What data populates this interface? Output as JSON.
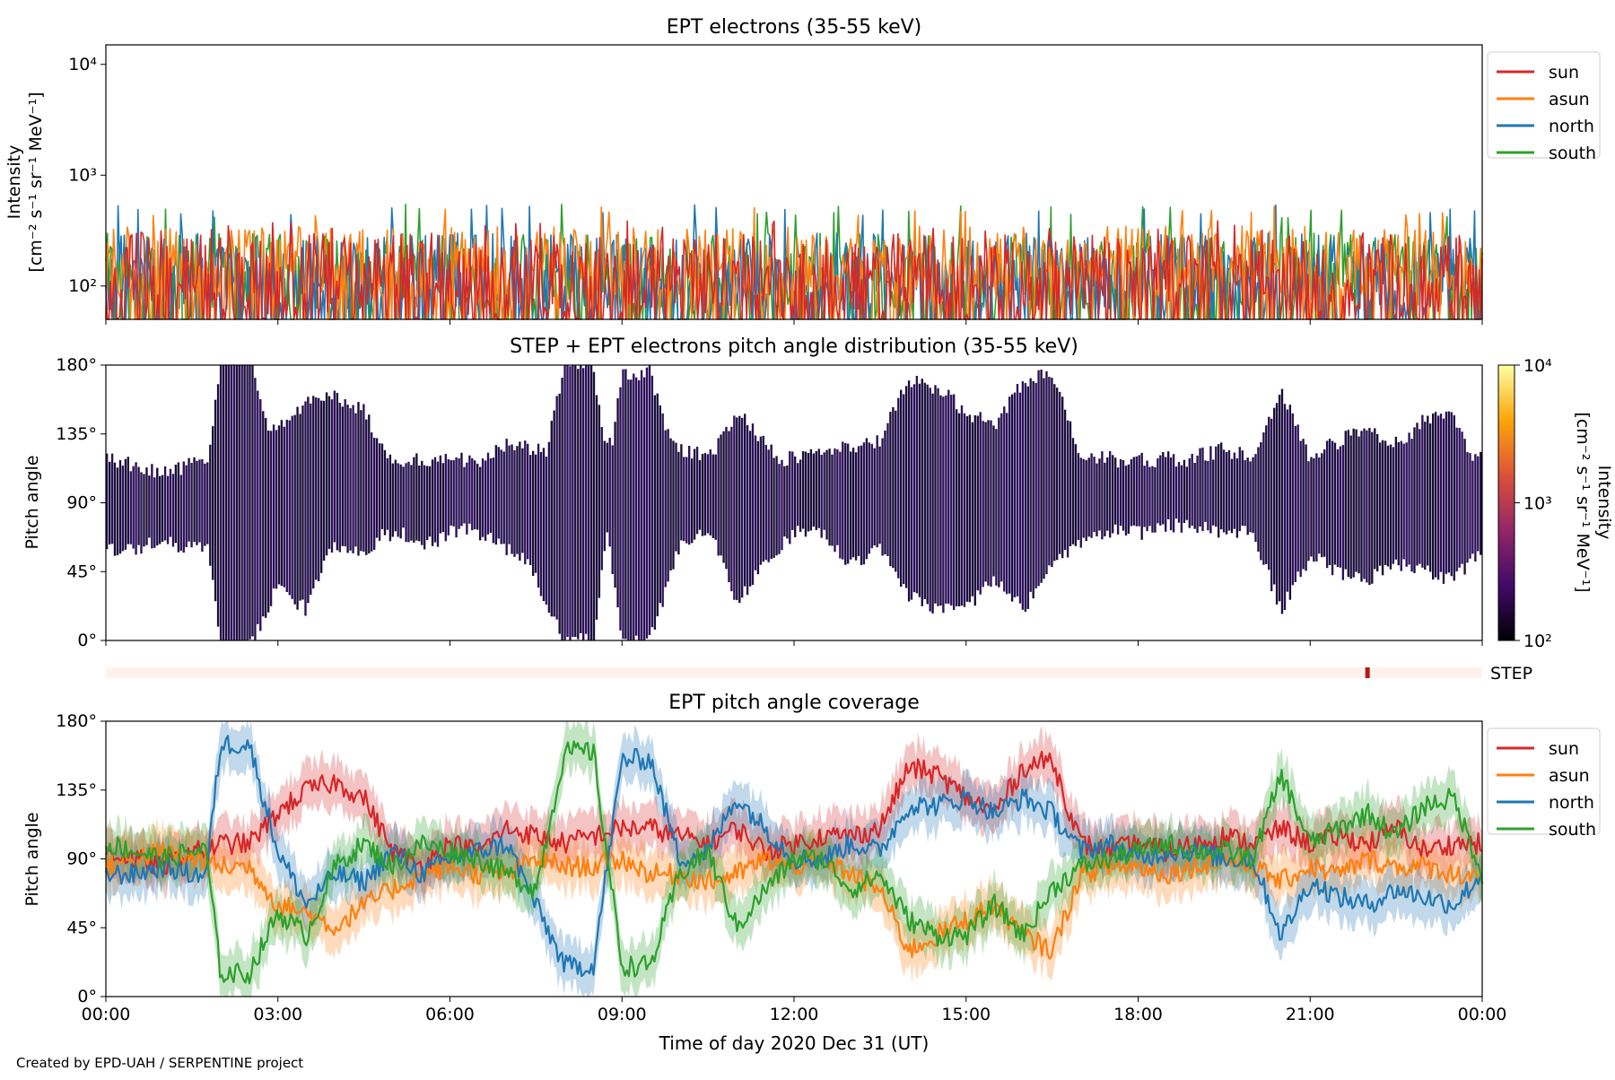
{
  "footer": "Created by EPD-UAH / SERPENTINE project",
  "colors": {
    "sun": "#d62728",
    "asun": "#ff7f0e",
    "north": "#1f77b4",
    "south": "#2ca02c"
  },
  "chart_data": [
    {
      "type": "line",
      "title": "EPT electrons (35-55 keV)",
      "ylabel": [
        "Intensity",
        "[cm⁻² s⁻¹ sr⁻¹ MeV⁻¹]"
      ],
      "yscale": "log",
      "ylim": [
        50,
        15000
      ],
      "yticks": [
        {
          "value": 100,
          "label": "10²"
        },
        {
          "value": 1000,
          "label": "10³"
        },
        {
          "value": 10000,
          "label": "10⁴"
        }
      ],
      "legend_position": "right",
      "series": [
        {
          "name": "sun",
          "color": "#d62728",
          "typical": [
            50,
            300
          ],
          "peak": 400
        },
        {
          "name": "asun",
          "color": "#ff7f0e",
          "typical": [
            80,
            350
          ],
          "peak": 550
        },
        {
          "name": "north",
          "color": "#1f77b4",
          "typical": [
            60,
            300
          ],
          "peak": 550
        },
        {
          "name": "south",
          "color": "#2ca02c",
          "typical": [
            60,
            300
          ],
          "peak": 550
        }
      ]
    },
    {
      "type": "heatmap",
      "title": "STEP + EPT electrons pitch angle distribution (35-55 keV)",
      "ylabel": "Pitch angle",
      "ylim": [
        0,
        180
      ],
      "yticks": [
        "0°",
        "45°",
        "90°",
        "135°",
        "180°"
      ],
      "colorbar": {
        "label": [
          "Intensity",
          "[cm⁻² s⁻¹ sr⁻¹ MeV⁻¹]"
        ],
        "scale": "log",
        "range": [
          100,
          10000
        ],
        "ticks": [
          "10²",
          "10³",
          "10⁴"
        ],
        "colormap": "inferno",
        "typical_value": 150
      }
    },
    {
      "type": "bar",
      "label": "STEP",
      "marker_time_h": 22.0
    },
    {
      "type": "line",
      "title": "EPT pitch angle coverage",
      "ylabel": "Pitch angle",
      "ylim": [
        0,
        180
      ],
      "yticks": [
        "0°",
        "45°",
        "90°",
        "135°",
        "180°"
      ],
      "xlabel": "Time of day 2020 Dec 31 (UT)",
      "xlim_h": [
        0,
        24
      ],
      "xticks": [
        "00:00",
        "03:00",
        "06:00",
        "09:00",
        "12:00",
        "15:00",
        "18:00",
        "21:00",
        "00:00"
      ],
      "legend_position": "right",
      "times_h": [
        0,
        0.5,
        1,
        1.5,
        1.75,
        2,
        2.5,
        3,
        3.5,
        4,
        4.5,
        5,
        5.5,
        6,
        6.5,
        7,
        7.5,
        8,
        8.5,
        9,
        9.5,
        10,
        10.5,
        11,
        11.5,
        12,
        12.5,
        13,
        13.5,
        14,
        14.5,
        15,
        15.5,
        16,
        16.5,
        17,
        17.5,
        18,
        18.5,
        19,
        19.5,
        20,
        20.5,
        21,
        21.5,
        22,
        22.5,
        23,
        23.5,
        24
      ],
      "series": [
        {
          "name": "sun",
          "color": "#d62728",
          "values": [
            95,
            90,
            85,
            95,
            95,
            100,
            100,
            120,
            135,
            140,
            130,
            95,
            85,
            100,
            95,
            110,
            105,
            100,
            105,
            110,
            110,
            105,
            100,
            110,
            95,
            100,
            105,
            105,
            110,
            150,
            145,
            130,
            120,
            150,
            155,
            100,
            95,
            100,
            95,
            100,
            105,
            100,
            110,
            100,
            105,
            100,
            110,
            95,
            100,
            100
          ]
        },
        {
          "name": "asun",
          "color": "#ff7f0e",
          "values": [
            85,
            90,
            95,
            90,
            90,
            85,
            85,
            60,
            55,
            45,
            60,
            70,
            80,
            85,
            80,
            80,
            90,
            85,
            85,
            90,
            80,
            80,
            75,
            80,
            90,
            85,
            90,
            80,
            70,
            30,
            40,
            50,
            60,
            40,
            30,
            80,
            85,
            85,
            80,
            85,
            90,
            85,
            75,
            85,
            80,
            90,
            85,
            85,
            80,
            80
          ]
        },
        {
          "name": "north",
          "color": "#1f77b4",
          "values": [
            80,
            80,
            85,
            80,
            80,
            165,
            165,
            95,
            60,
            80,
            75,
            95,
            80,
            90,
            95,
            100,
            60,
            20,
            20,
            155,
            155,
            90,
            95,
            130,
            110,
            90,
            90,
            100,
            95,
            125,
            125,
            130,
            120,
            130,
            120,
            95,
            100,
            90,
            95,
            95,
            90,
            90,
            40,
            75,
            65,
            60,
            70,
            65,
            60,
            80
          ]
        },
        {
          "name": "south",
          "color": "#2ca02c",
          "values": [
            100,
            95,
            90,
            95,
            95,
            15,
            15,
            55,
            40,
            85,
            100,
            85,
            100,
            95,
            90,
            80,
            70,
            160,
            160,
            20,
            20,
            80,
            95,
            45,
            70,
            90,
            90,
            70,
            80,
            50,
            40,
            40,
            60,
            40,
            70,
            85,
            90,
            95,
            100,
            95,
            95,
            90,
            145,
            100,
            110,
            120,
            105,
            125,
            130,
            80
          ]
        }
      ]
    }
  ]
}
